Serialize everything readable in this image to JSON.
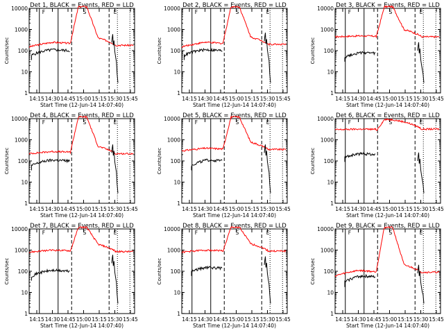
{
  "chart_data": [
    {
      "type": "line",
      "title": "Det 1, BLACK = Events, RED = LLD",
      "ylabel": "Counts/sec",
      "xlabel": "Start Time (12-Jun-14 14:07:40)",
      "yscale": "log",
      "ylim": [
        1,
        10000
      ],
      "ytick_labels": [
        "1",
        "10",
        "100",
        "1000",
        "10000"
      ],
      "xlim": [
        "14:07:40",
        "15:49"
      ],
      "xtick_labels": [
        "14:15",
        "14:30",
        "14:45",
        "15:00",
        "15:15",
        "15:30",
        "15:45"
      ],
      "markers": [
        "F",
        "S",
        "E"
      ],
      "events_start": "14:10",
      "events_end": "15:34",
      "red_base": [
        150,
        250,
        180
      ],
      "black_base": [
        60,
        110,
        50
      ],
      "peak": 12000,
      "events_peak": 600,
      "red_color": "#ff0000",
      "black_color": "#000000"
    },
    {
      "type": "line",
      "title": "Det 2, BLACK = Events, RED = LLD",
      "ylabel": "Counts/sec",
      "xlabel": "Start Time (12-Jun-14 14:07:40)",
      "yscale": "log",
      "ylim": [
        1,
        10000
      ],
      "ytick_labels": [
        "1",
        "10",
        "100",
        "1000",
        "10000"
      ],
      "xlim": [
        "14:07:40",
        "15:49"
      ],
      "xtick_labels": [
        "14:15",
        "14:30",
        "14:45",
        "15:00",
        "15:15",
        "15:30",
        "15:45"
      ],
      "markers": [
        "F",
        "S",
        "E"
      ],
      "events_start": "14:10",
      "events_end": "15:34",
      "red_base": [
        150,
        250,
        200
      ],
      "black_base": [
        60,
        110,
        50
      ],
      "peak": 12000,
      "events_peak": 700,
      "red_color": "#ff0000",
      "black_color": "#000000"
    },
    {
      "type": "line",
      "title": "Det 3, BLACK = Events, RED = LLD",
      "ylabel": "Counts/sec",
      "xlabel": "Start Time (12-Jun-14 14:07:40)",
      "yscale": "log",
      "ylim": [
        1,
        10000
      ],
      "ytick_labels": [
        "1",
        "10",
        "100",
        "1000",
        "10000"
      ],
      "xlim": [
        "14:07:40",
        "15:49"
      ],
      "xtick_labels": [
        "14:15",
        "14:30",
        "14:45",
        "15:00",
        "15:15",
        "15:30",
        "15:45"
      ],
      "markers": [
        "F",
        "S",
        "E"
      ],
      "events_start": "14:17",
      "events_end": "15:34",
      "red_base": [
        450,
        500,
        450
      ],
      "black_base": [
        50,
        80,
        60
      ],
      "peak": 12000,
      "events_peak": 250,
      "red_color": "#ff0000",
      "black_color": "#000000"
    },
    {
      "type": "line",
      "title": "Det 4, BLACK = Events, RED = LLD",
      "ylabel": "Counts/sec",
      "xlabel": "Start Time (12-Jun-14 14:07:40)",
      "yscale": "log",
      "ylim": [
        1,
        10000
      ],
      "ytick_labels": [
        "1",
        "10",
        "100",
        "1000",
        "10000"
      ],
      "xlim": [
        "14:07:40",
        "15:49"
      ],
      "xtick_labels": [
        "14:15",
        "14:30",
        "14:45",
        "15:00",
        "15:15",
        "15:30",
        "15:45"
      ],
      "markers": [
        "F",
        "S",
        "E"
      ],
      "events_start": "14:10",
      "events_end": "15:34",
      "red_base": [
        220,
        280,
        220
      ],
      "black_base": [
        60,
        110,
        50
      ],
      "peak": 12000,
      "events_peak": 600,
      "red_color": "#ff0000",
      "black_color": "#000000"
    },
    {
      "type": "line",
      "title": "Det 5, BLACK = Events, RED = LLD",
      "ylabel": "Counts/sec",
      "xlabel": "Start Time (12-Jun-14 14:07:40)",
      "yscale": "log",
      "ylim": [
        1,
        10000
      ],
      "ytick_labels": [
        "1",
        "10",
        "100",
        "1000",
        "10000"
      ],
      "xlim": [
        "14:07:40",
        "15:49"
      ],
      "xtick_labels": [
        "14:15",
        "14:30",
        "14:45",
        "15:00",
        "15:15",
        "15:30",
        "15:45"
      ],
      "markers": [
        "F",
        "S",
        "E"
      ],
      "events_start": "14:17",
      "events_end": "15:34",
      "red_base": [
        300,
        400,
        350
      ],
      "black_base": [
        60,
        110,
        50
      ],
      "peak": 12000,
      "events_peak": 600,
      "red_color": "#ff0000",
      "black_color": "#000000"
    },
    {
      "type": "line",
      "title": "Det 6, BLACK = Events, RED = LLD",
      "ylabel": "Counts/sec",
      "xlabel": "Start Time (12-Jun-14 14:07:40)",
      "yscale": "log",
      "ylim": [
        1,
        10000
      ],
      "ytick_labels": [
        "1",
        "10",
        "100",
        "1000",
        "10000"
      ],
      "xlim": [
        "14:07:40",
        "15:49"
      ],
      "xtick_labels": [
        "14:15",
        "14:30",
        "14:45",
        "15:00",
        "15:15",
        "15:30",
        "15:45"
      ],
      "markers": [
        "F",
        "S",
        "E"
      ],
      "events_start": "14:17",
      "events_end": "15:34",
      "red_base": [
        3000,
        3200,
        3200
      ],
      "black_base": [
        150,
        220,
        150
      ],
      "peak": 9000,
      "events_peak": 250,
      "red_color": "#ff0000",
      "black_color": "#000000"
    },
    {
      "type": "line",
      "title": "Det 7, BLACK = Events, RED = LLD",
      "ylabel": "Counts/sec",
      "xlabel": "Start Time (12-Jun-14 14:07:40)",
      "yscale": "log",
      "ylim": [
        1,
        10000
      ],
      "ytick_labels": [
        "1",
        "10",
        "100",
        "1000",
        "10000"
      ],
      "xlim": [
        "14:07:40",
        "15:49"
      ],
      "xtick_labels": [
        "14:15",
        "14:30",
        "14:45",
        "15:00",
        "15:15",
        "15:30",
        "15:45"
      ],
      "markers": [
        "F",
        "S",
        "E"
      ],
      "events_start": "14:10",
      "events_end": "15:34",
      "red_base": [
        800,
        1000,
        850
      ],
      "black_base": [
        60,
        110,
        50
      ],
      "peak": 12000,
      "events_peak": 600,
      "red_color": "#ff0000",
      "black_color": "#000000"
    },
    {
      "type": "line",
      "title": "Det 8, BLACK = Events, RED = LLD",
      "ylabel": "Counts/sec",
      "xlabel": "Start Time (12-Jun-14 14:07:40)",
      "yscale": "log",
      "ylim": [
        1,
        10000
      ],
      "ytick_labels": [
        "1",
        "10",
        "100",
        "1000",
        "10000"
      ],
      "xlim": [
        "14:07:40",
        "15:49"
      ],
      "xtick_labels": [
        "14:15",
        "14:30",
        "14:45",
        "15:00",
        "15:15",
        "15:30",
        "15:45"
      ],
      "markers": [
        "F",
        "S",
        "E"
      ],
      "events_start": "14:17",
      "events_end": "15:34",
      "red_base": [
        800,
        1000,
        900
      ],
      "black_base": [
        100,
        150,
        120
      ],
      "peak": 12000,
      "events_peak": 500,
      "red_color": "#ff0000",
      "black_color": "#000000"
    },
    {
      "type": "line",
      "title": "Det 9, BLACK = Events, RED = LLD",
      "ylabel": "Counts/sec",
      "xlabel": "Start Time (12-Jun-14 14:07:40)",
      "yscale": "log",
      "ylim": [
        1,
        10000
      ],
      "ytick_labels": [
        "1",
        "10",
        "100",
        "1000",
        "10000"
      ],
      "xlim": [
        "14:07:40",
        "15:49"
      ],
      "xtick_labels": [
        "14:15",
        "14:30",
        "14:45",
        "15:00",
        "15:15",
        "15:30",
        "15:45"
      ],
      "markers": [
        "F",
        "S",
        "E"
      ],
      "events_start": "14:17",
      "events_end": "15:34",
      "red_base": [
        60,
        110,
        90
      ],
      "black_base": [
        30,
        60,
        40
      ],
      "peak": 12000,
      "events_peak": 200,
      "red_color": "#ff0000",
      "black_color": "#000000"
    }
  ]
}
